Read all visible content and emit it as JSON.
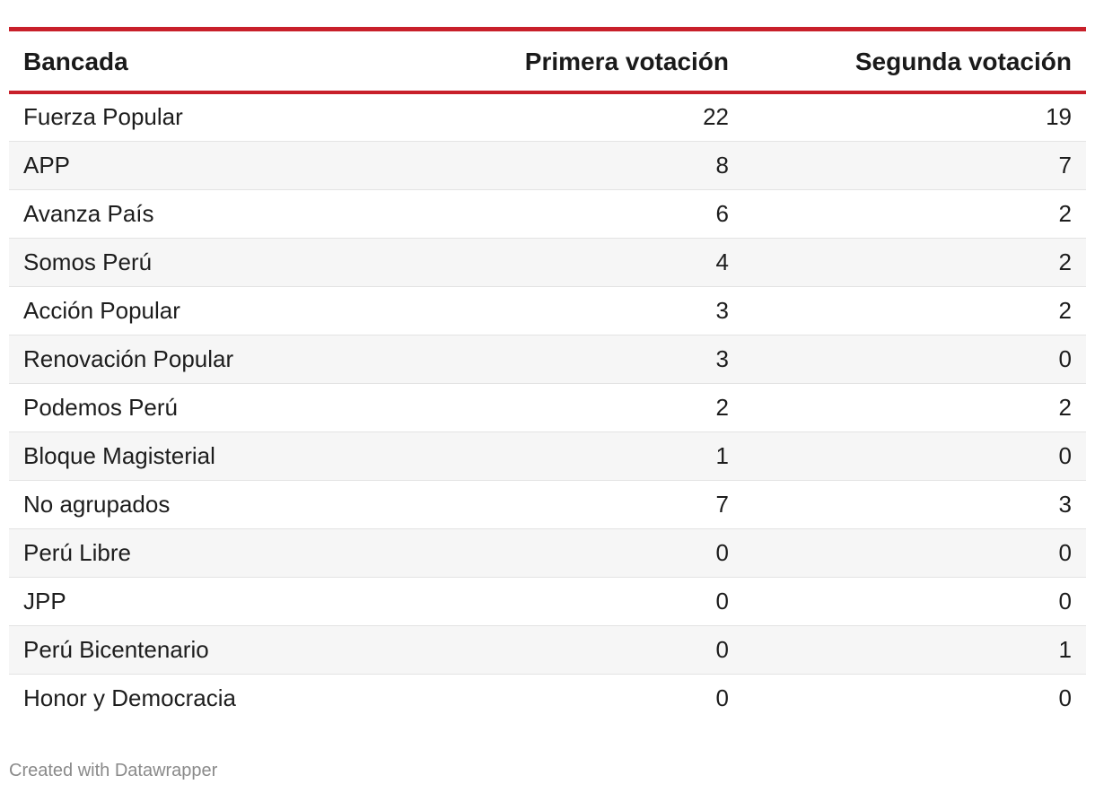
{
  "colors": {
    "accent": "#c8202a"
  },
  "chart_data": {
    "type": "table",
    "columns": [
      "Bancada",
      "Primera votación",
      "Segunda votación"
    ],
    "rows": [
      {
        "bancada": "Fuerza Popular",
        "primera": "22",
        "segunda": "19"
      },
      {
        "bancada": "APP",
        "primera": "8",
        "segunda": "7"
      },
      {
        "bancada": "Avanza País",
        "primera": "6",
        "segunda": "2"
      },
      {
        "bancada": "Somos Perú",
        "primera": "4",
        "segunda": "2"
      },
      {
        "bancada": "Acción Popular",
        "primera": "3",
        "segunda": "2"
      },
      {
        "bancada": "Renovación Popular",
        "primera": "3",
        "segunda": "0"
      },
      {
        "bancada": "Podemos Perú",
        "primera": "2",
        "segunda": "2"
      },
      {
        "bancada": "Bloque Magisterial",
        "primera": "1",
        "segunda": "0"
      },
      {
        "bancada": "No agrupados",
        "primera": "7",
        "segunda": "3"
      },
      {
        "bancada": "Perú Libre",
        "primera": "0",
        "segunda": "0"
      },
      {
        "bancada": "JPP",
        "primera": "0",
        "segunda": "0"
      },
      {
        "bancada": "Perú Bicentenario",
        "primera": "0",
        "segunda": "1"
      },
      {
        "bancada": "Honor y Democracia",
        "primera": "0",
        "segunda": "0"
      }
    ]
  },
  "footer": {
    "credit": "Created with Datawrapper"
  }
}
